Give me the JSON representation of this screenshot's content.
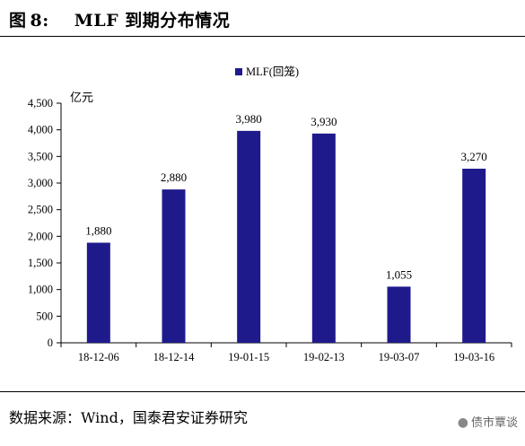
{
  "figure": {
    "label": "图",
    "number": "8:",
    "title": "MLF 到期分布情况"
  },
  "source_text": "数据来源：Wind，国泰君安证券研究",
  "watermark_text": "债市覃谈",
  "chart_data": {
    "type": "bar",
    "categories": [
      "18-12-06",
      "18-12-14",
      "19-01-15",
      "19-02-13",
      "19-03-07",
      "19-03-16"
    ],
    "series": [
      {
        "name": "MLF(回笼)",
        "values": [
          1880,
          2880,
          3980,
          3930,
          1055,
          3270
        ],
        "color": "#1f1a8c"
      }
    ],
    "data_labels": [
      "1,880",
      "2,880",
      "3,980",
      "3,930",
      "1,055",
      "3,270"
    ],
    "y_unit": "亿元",
    "ylim": [
      0,
      4500
    ],
    "y_ticks": [
      0,
      500,
      1000,
      1500,
      2000,
      2500,
      3000,
      3500,
      4000,
      4500
    ],
    "y_tick_labels": [
      "0",
      "500",
      "1,000",
      "1,500",
      "2,000",
      "2,500",
      "3,000",
      "3,500",
      "4,000",
      "4,500"
    ],
    "legend_position": "top-center",
    "grid": false
  }
}
